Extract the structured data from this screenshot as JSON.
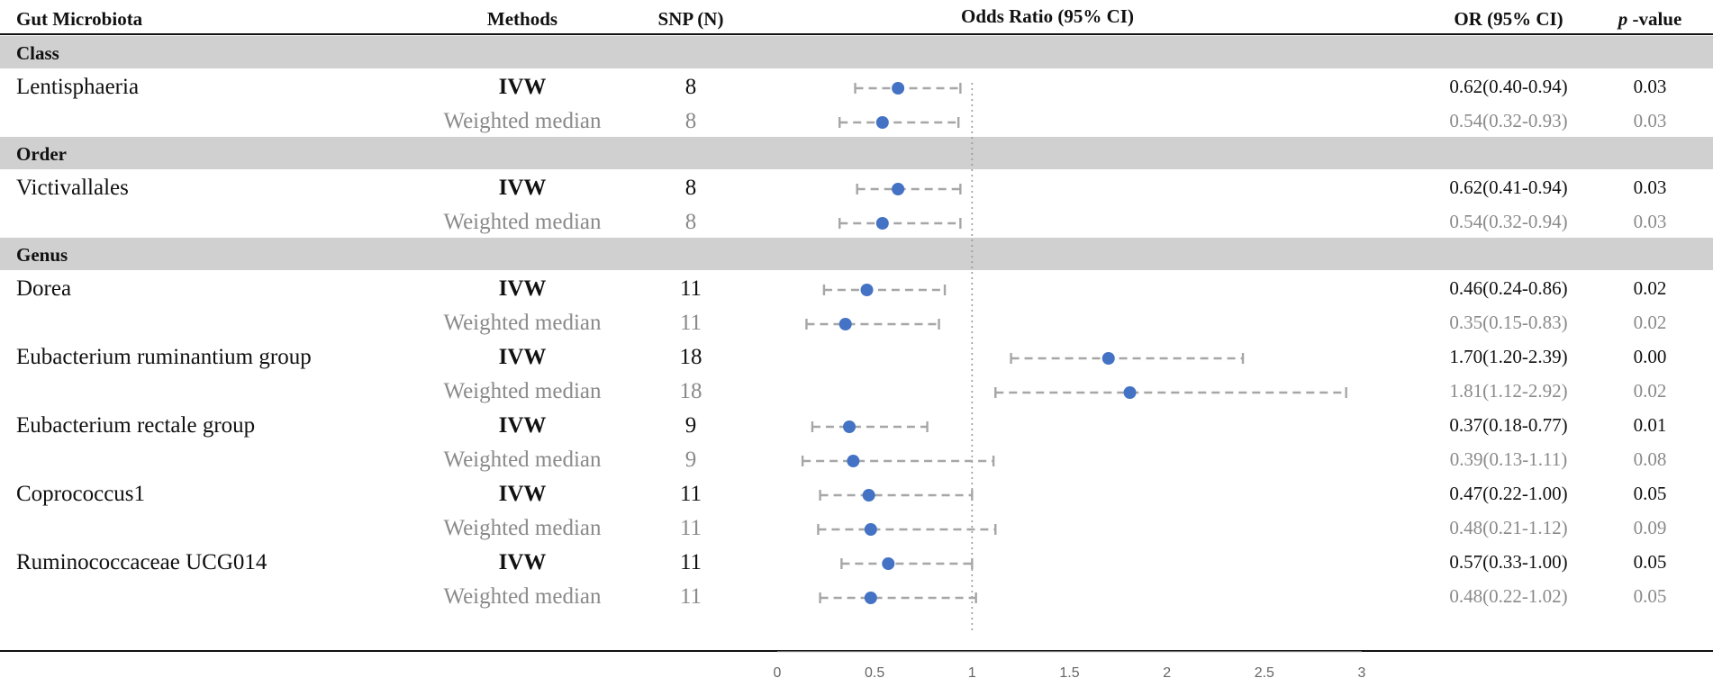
{
  "headers": {
    "microbiota": "Gut Microbiota",
    "methods": "Methods",
    "snp": "SNP (N)",
    "odds_ratio": "Odds Ratio (95% CI)",
    "or_ci": "OR (95% CI)",
    "p_italic": "p",
    "p_rest": " -value"
  },
  "colors": {
    "point": "#4472c4",
    "ci": "#a6a6a6",
    "section_bg": "#d0d0d0",
    "muted_text": "#8a8a8a"
  },
  "chart_data": {
    "type": "forest",
    "title": "Odds Ratio (95% CI)",
    "xlim": [
      0,
      3
    ],
    "reference_line": 1,
    "x_ticks": [
      "0",
      "0.5",
      "1",
      "1.5",
      "2",
      "2.5",
      "3"
    ],
    "x_tick_values": [
      0,
      0.5,
      1,
      1.5,
      2,
      2.5,
      3
    ],
    "rows": [
      {
        "kind": "section",
        "label": "Class"
      },
      {
        "kind": "data",
        "taxon": "Lentisphaeria",
        "method": "IVW",
        "snp": "8",
        "or": 0.62,
        "lo": 0.4,
        "hi": 0.94,
        "or_text": "0.62(0.40-0.94)",
        "p": "0.03"
      },
      {
        "kind": "data",
        "taxon": "",
        "method": "Weighted median",
        "snp": "8",
        "or": 0.54,
        "lo": 0.32,
        "hi": 0.93,
        "or_text": "0.54(0.32-0.93)",
        "p": "0.03"
      },
      {
        "kind": "section",
        "label": "Order"
      },
      {
        "kind": "data",
        "taxon": "Victivallales",
        "method": "IVW",
        "snp": "8",
        "or": 0.62,
        "lo": 0.41,
        "hi": 0.94,
        "or_text": "0.62(0.41-0.94)",
        "p": "0.03"
      },
      {
        "kind": "data",
        "taxon": "",
        "method": "Weighted median",
        "snp": "8",
        "or": 0.54,
        "lo": 0.32,
        "hi": 0.94,
        "or_text": "0.54(0.32-0.94)",
        "p": "0.03"
      },
      {
        "kind": "section",
        "label": "Genus"
      },
      {
        "kind": "data",
        "taxon": "Dorea",
        "method": "IVW",
        "snp": "11",
        "or": 0.46,
        "lo": 0.24,
        "hi": 0.86,
        "or_text": "0.46(0.24-0.86)",
        "p": "0.02"
      },
      {
        "kind": "data",
        "taxon": "",
        "method": "Weighted median",
        "snp": "11",
        "or": 0.35,
        "lo": 0.15,
        "hi": 0.83,
        "or_text": "0.35(0.15-0.83)",
        "p": "0.02"
      },
      {
        "kind": "data",
        "taxon": "Eubacterium ruminantium group",
        "method": "IVW",
        "snp": "18",
        "or": 1.7,
        "lo": 1.2,
        "hi": 2.39,
        "or_text": "1.70(1.20-2.39)",
        "p": "0.00"
      },
      {
        "kind": "data",
        "taxon": "",
        "method": "Weighted median",
        "snp": "18",
        "or": 1.81,
        "lo": 1.12,
        "hi": 2.92,
        "or_text": "1.81(1.12-2.92)",
        "p": "0.02"
      },
      {
        "kind": "data",
        "taxon": "Eubacterium rectale group",
        "method": "IVW",
        "snp": "9",
        "or": 0.37,
        "lo": 0.18,
        "hi": 0.77,
        "or_text": "0.37(0.18-0.77)",
        "p": "0.01"
      },
      {
        "kind": "data",
        "taxon": "",
        "method": "Weighted median",
        "snp": "9",
        "or": 0.39,
        "lo": 0.13,
        "hi": 1.11,
        "or_text": "0.39(0.13-1.11)",
        "p": "0.08"
      },
      {
        "kind": "data",
        "taxon": "Coprococcus1",
        "method": "IVW",
        "snp": "11",
        "or": 0.47,
        "lo": 0.22,
        "hi": 1.0,
        "or_text": "0.47(0.22-1.00)",
        "p": "0.05"
      },
      {
        "kind": "data",
        "taxon": "",
        "method": "Weighted median",
        "snp": "11",
        "or": 0.48,
        "lo": 0.21,
        "hi": 1.12,
        "or_text": "0.48(0.21-1.12)",
        "p": "0.09"
      },
      {
        "kind": "data",
        "taxon": "Ruminococcaceae UCG014",
        "method": "IVW",
        "snp": "11",
        "or": 0.57,
        "lo": 0.33,
        "hi": 1.0,
        "or_text": "0.57(0.33-1.00)",
        "p": "0.05"
      },
      {
        "kind": "data",
        "taxon": "",
        "method": "Weighted median",
        "snp": "11",
        "or": 0.48,
        "lo": 0.22,
        "hi": 1.02,
        "or_text": "0.48(0.22-1.02)",
        "p": "0.05"
      }
    ]
  }
}
